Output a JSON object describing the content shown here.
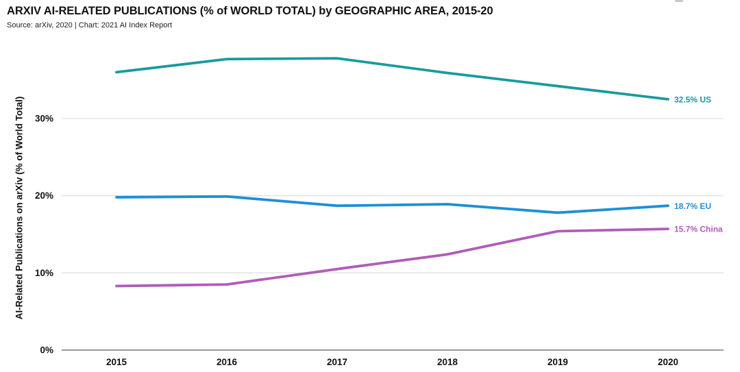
{
  "header": {
    "title": "ARXIV AI-RELATED PUBLICATIONS (% of WORLD TOTAL) by GEOGRAPHIC AREA, 2015-20",
    "source": "Source: arXiv, 2020 | Chart: 2021 AI Index Report"
  },
  "chart_data": {
    "type": "line",
    "title": "ARXIV AI-RELATED PUBLICATIONS (% of WORLD TOTAL) by GEOGRAPHIC AREA, 2015-20",
    "subtitle": "Source: arXiv, 2020 | Chart: 2021 AI Index Report",
    "x": [
      "2015",
      "2016",
      "2017",
      "2018",
      "2019",
      "2020"
    ],
    "series": [
      {
        "name": "US",
        "color": "#199B9E",
        "values": [
          36.0,
          37.7,
          37.8,
          35.9,
          34.2,
          32.5
        ],
        "end_label": "32.5% US"
      },
      {
        "name": "EU",
        "color": "#1E8FD6",
        "values": [
          19.8,
          19.9,
          18.7,
          18.9,
          17.8,
          18.7
        ],
        "end_label": "18.7% EU"
      },
      {
        "name": "China",
        "color": "#B15CB8",
        "values": [
          8.3,
          8.5,
          10.5,
          12.4,
          15.4,
          15.7
        ],
        "end_label": "15.7% China"
      }
    ],
    "xlabel": "",
    "ylabel": "AI-Related Publications on arXiv (% of World Total)",
    "yticks": [
      0,
      10,
      20,
      30
    ],
    "ytick_labels": [
      "0%",
      "10%",
      "20%",
      "30%"
    ],
    "ylim": [
      0,
      38.7
    ],
    "grid": "horizontal-only",
    "legend_position": "end-of-line-labels",
    "colors": {
      "gridline": "#E0E0E0",
      "axis_line": "#9A9A9A",
      "text": "#111111"
    }
  }
}
